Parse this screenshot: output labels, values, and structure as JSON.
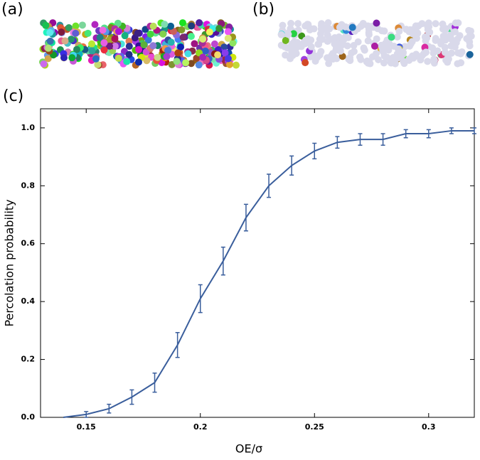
{
  "panel_labels": [
    "(a)",
    "(b)",
    "(c)"
  ],
  "chart_data": {
    "type": "line",
    "xlabel": "OE/σ",
    "ylabel": "Percolation probability",
    "x": [
      0.14,
      0.15,
      0.16,
      0.17,
      0.18,
      0.19,
      0.2,
      0.21,
      0.22,
      0.23,
      0.24,
      0.25,
      0.26,
      0.27,
      0.28,
      0.29,
      0.3,
      0.31,
      0.32
    ],
    "series": [
      {
        "color": "#3a5e9c",
        "values": [
          0.0,
          0.01,
          0.03,
          0.07,
          0.12,
          0.25,
          0.41,
          0.54,
          0.69,
          0.8,
          0.87,
          0.92,
          0.95,
          0.96,
          0.96,
          0.98,
          0.98,
          0.99,
          0.99
        ],
        "errors": [
          0.0,
          0.01,
          0.015,
          0.025,
          0.033,
          0.043,
          0.048,
          0.048,
          0.046,
          0.04,
          0.033,
          0.027,
          0.02,
          0.02,
          0.02,
          0.014,
          0.014,
          0.01,
          0.01
        ]
      }
    ],
    "xlim": [
      0.13,
      0.32
    ],
    "ylim": [
      0,
      1.066
    ],
    "xticks": [
      0.15,
      0.2,
      0.25,
      0.3
    ],
    "yticks": [
      {
        "value": 0,
        "label": "0.0"
      },
      0.2,
      0.4,
      0.6,
      0.8,
      {
        "value": 1,
        "label": "1.0"
      }
    ]
  }
}
